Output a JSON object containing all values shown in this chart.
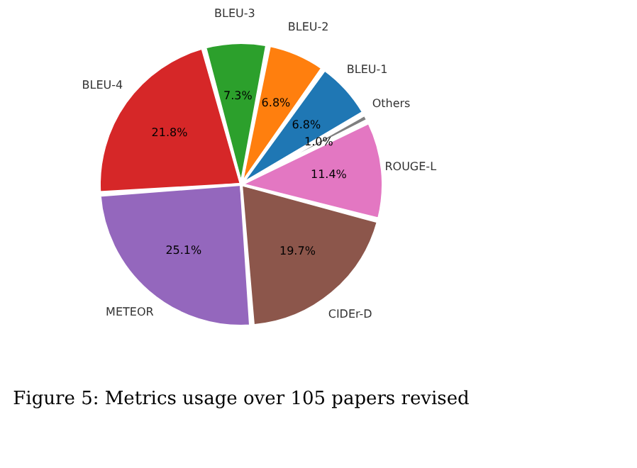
{
  "chart_data": {
    "type": "pie",
    "title": "Figure 5: Metrics usage over 105 papers revised",
    "categories": [
      "BLEU-1",
      "BLEU-2",
      "BLEU-3",
      "BLEU-4",
      "METEOR",
      "CIDEr-D",
      "ROUGE-L",
      "Others"
    ],
    "values": [
      6.8,
      6.8,
      7.3,
      21.8,
      25.1,
      19.7,
      11.4,
      1.0
    ],
    "colors": [
      "#1f77b4",
      "#ff7f0e",
      "#2ca02c",
      "#d62728",
      "#9467bd",
      "#8c564b",
      "#e377c2",
      "#7f7f7f"
    ],
    "value_labels": [
      "6.8%",
      "6.8%",
      "7.3%",
      "21.8%",
      "25.1%",
      "19.7%",
      "11.4%",
      "1.0%"
    ],
    "legend": false
  }
}
